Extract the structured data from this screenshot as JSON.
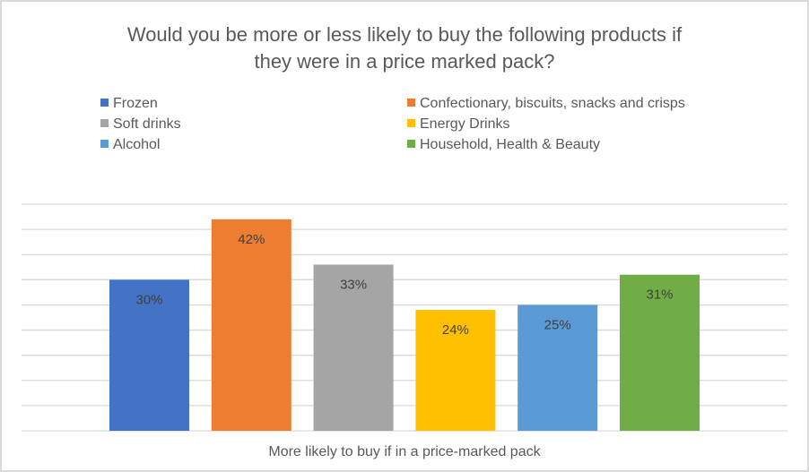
{
  "chart_data": {
    "type": "bar",
    "title": "Would you be more or less likely to buy the following products if they were in a price marked pack?",
    "title_lines": [
      "Would you be more or less likely to buy the following products if",
      "they were in a price marked pack?"
    ],
    "categories": [
      "More likely to buy if in a price-marked pack"
    ],
    "xlabel": "More likely to buy if in a price-marked pack",
    "ylabel": "",
    "ylim": [
      0,
      45
    ],
    "grid_step": 5,
    "grid": true,
    "y_axis_labels_shown": false,
    "legend_placement": "top",
    "series": [
      {
        "name": "Frozen",
        "values": [
          30
        ],
        "label": "30%",
        "color": "#4472c4"
      },
      {
        "name": "Confectionary, biscuits, snacks and crisps",
        "values": [
          42
        ],
        "label": "42%",
        "color": "#ed7d31"
      },
      {
        "name": "Soft drinks",
        "values": [
          33
        ],
        "label": "33%",
        "color": "#a5a5a5"
      },
      {
        "name": "Energy Drinks",
        "values": [
          24
        ],
        "label": "24%",
        "color": "#ffc000"
      },
      {
        "name": "Alcohol",
        "values": [
          25
        ],
        "label": "25%",
        "color": "#5b9bd5"
      },
      {
        "name": "Household, Health & Beauty",
        "values": [
          31
        ],
        "label": "31%",
        "color": "#70ad47"
      }
    ]
  }
}
